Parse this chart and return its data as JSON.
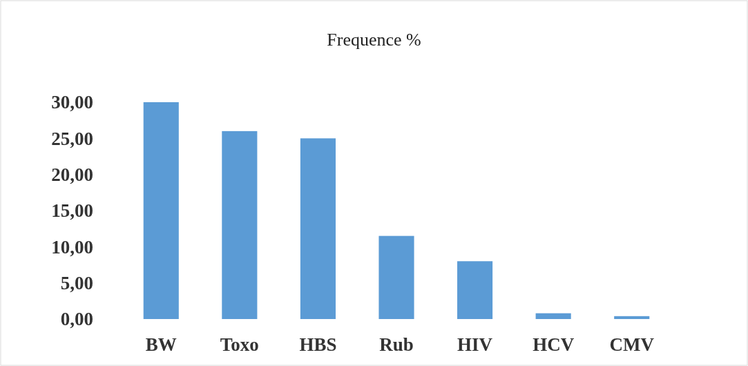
{
  "chart_data": {
    "type": "bar",
    "title": "Frequence %",
    "categories": [
      "BW",
      "Toxo",
      "HBS",
      "Rub",
      "HIV",
      "HCV",
      "CMV"
    ],
    "values": [
      30.0,
      26.0,
      25.0,
      11.5,
      8.0,
      0.8,
      0.4
    ],
    "color": "#5b9bd5",
    "ylim": [
      0,
      30
    ],
    "yticks": [
      {
        "value": 0,
        "label": "0,00"
      },
      {
        "value": 5,
        "label": "5,00"
      },
      {
        "value": 10,
        "label": "10,00"
      },
      {
        "value": 15,
        "label": "15,00"
      },
      {
        "value": 20,
        "label": "20,00"
      },
      {
        "value": 25,
        "label": "25,00"
      },
      {
        "value": 30,
        "label": "30,00"
      }
    ],
    "grid": false
  }
}
